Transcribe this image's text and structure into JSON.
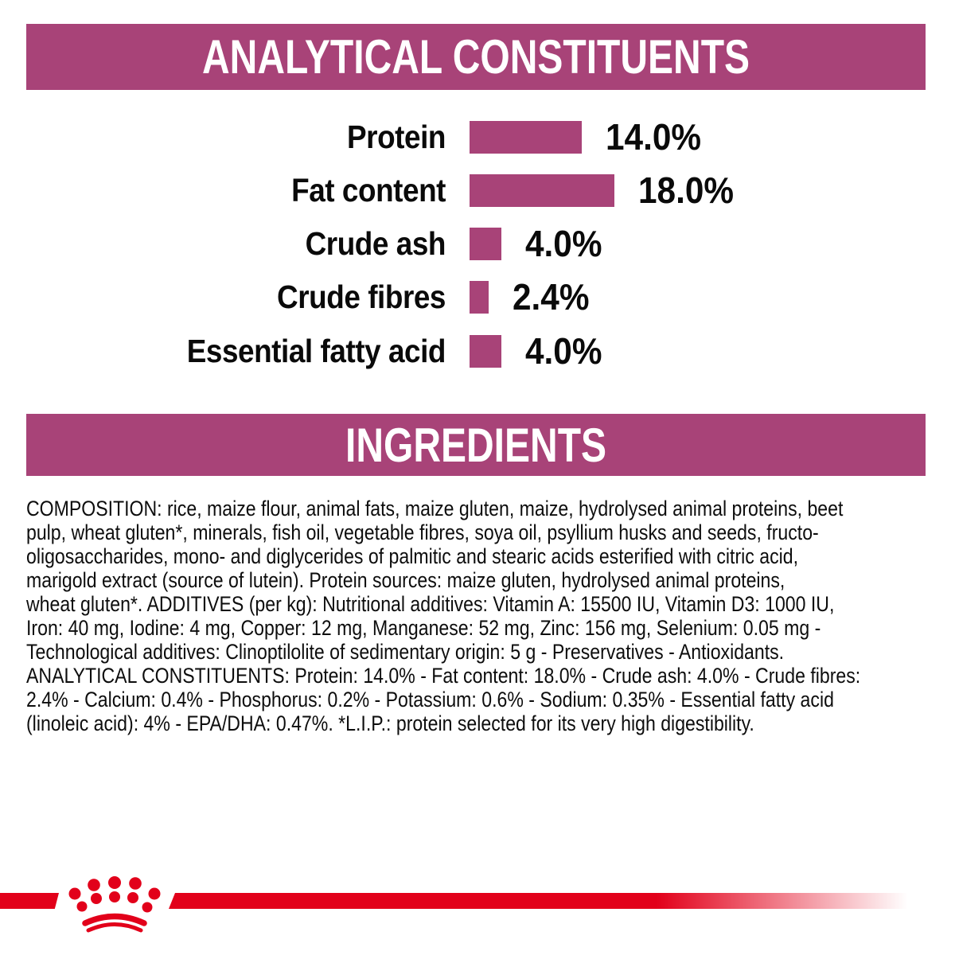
{
  "header_banner": {
    "label": "ANALYTICAL CONSTITUENTS"
  },
  "ingredients_banner": {
    "label": "INGREDIENTS"
  },
  "chart_data": {
    "type": "bar",
    "orientation": "horizontal",
    "title": "ANALYTICAL CONSTITUENTS",
    "categories": [
      "Protein",
      "Fat content",
      "Crude ash",
      "Crude fibres",
      "Essential fatty acid"
    ],
    "values": [
      14.0,
      18.0,
      4.0,
      2.4,
      4.0
    ],
    "value_labels": [
      "14.0%",
      "18.0%",
      "4.0%",
      "2.4%",
      "4.0%"
    ],
    "unit": "%",
    "xlim": [
      0,
      20
    ],
    "grid": false,
    "legend": false,
    "bar_color": "#A84378",
    "label_color": "#0a0a0a"
  },
  "ingredients": {
    "lines": [
      "COMPOSITION: rice, maize flour, animal fats, maize gluten, maize, hydrolysed animal proteins, beet",
      "pulp, wheat gluten*, minerals, fish oil, vegetable fibres, soya oil, psyllium husks and seeds, fructo-",
      "oligosaccharides, mono- and diglycerides of palmitic and stearic acids esterified with citric acid,",
      "marigold extract (source of lutein). Protein sources: maize gluten, hydrolysed animal proteins,",
      "wheat gluten*. ADDITIVES (per kg): Nutritional additives: Vitamin A: 15500 IU, Vitamin D3: 1000 IU,",
      "Iron: 40 mg, Iodine: 4 mg, Copper: 12 mg, Manganese: 52 mg, Zinc: 156 mg, Selenium: 0.05 mg -",
      "Technological additives: Clinoptilolite of sedimentary origin: 5 g - Preservatives - Antioxidants.",
      "ANALYTICAL CONSTITUENTS: Protein: 14.0% - Fat content: 18.0% - Crude ash: 4.0% - Crude fibres:",
      "2.4% - Calcium: 0.4% - Phosphorus: 0.2% - Potassium: 0.6% - Sodium: 0.35% - Essential fatty acid",
      "(linoleic acid): 4% - EPA/DHA: 0.47%. *L.I.P.: protein selected for its very high digestibility."
    ]
  },
  "footer": {
    "logo": "royal-canin-crown",
    "line_color": "#E2001A"
  },
  "colors": {
    "brand_magenta": "#A84378",
    "brand_red": "#E2001A",
    "text_black": "#0a0a0a",
    "background": "#ffffff"
  }
}
